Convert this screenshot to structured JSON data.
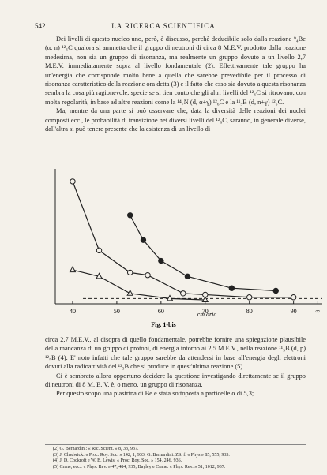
{
  "header": {
    "page_number": "542",
    "running_title": "LA RICERCA SCIENTIFICA"
  },
  "body_before": [
    "Dei livelli di questo nucleo uno, però, è discusso, perchè deducibile solo dalla reazione ⁹₄Be (α, n) ¹²₆C qualora si ammetta che il gruppo di neutroni di circa 8 M.E.V. prodotto dalla reazione medesima, non sia un gruppo di risonanza, ma realmente un gruppo dovuto a un livello 2,7 M.E.V. immediatamente sopra al livello fondamentale (2). Effettivamente tale gruppo ha un'energia che corrisponde molto bene a quella che sarebbe prevedibile per il processo di risonanza caratteristico della reazione ora detta (3) e il fatto che esso sia dovuto a questa risonanza sembra la cosa più ragionevole, specie se si tien conto che gli altri livelli del ¹²₆C si ritrovano, con molta regolarità, in base ad altre reazioni come la ¹⁴₇N (d, α+γ) ¹²₆C e la ¹¹₅B (d, n+γ) ¹²₆C.",
    "Ma, mentre da una parte si può osservare che, data la diversità delle reazioni dei nuclei composti ecc., le probabilità di transizione nei diversi livelli del ¹²₆C, saranno, in generale diverse, dall'altra si può tenere presente che la esistenza di un livello di"
  ],
  "figure": {
    "type": "scatter",
    "caption": "Fig. 1-bis",
    "xlabel": "cm aria",
    "xlim": [
      35,
      96.5
    ],
    "ylim": [
      0,
      100
    ],
    "xticks": [
      40,
      50,
      60,
      70,
      80,
      90,
      {
        "value": 95.5,
        "label": "∞"
      }
    ],
    "baseline": 4,
    "series": [
      {
        "marker": "open-circle",
        "x": [
          40,
          46,
          53,
          57,
          65,
          70,
          80,
          90
        ],
        "y": [
          94,
          41,
          24,
          22,
          8,
          7,
          5,
          5
        ]
      },
      {
        "marker": "filled-circle",
        "x": [
          53,
          56,
          60,
          66,
          76,
          86
        ],
        "y": [
          68,
          49,
          33,
          21,
          12,
          10
        ]
      },
      {
        "marker": "triangle",
        "x": [
          40,
          46,
          53,
          62,
          70
        ],
        "y": [
          26,
          21,
          8,
          4,
          3
        ]
      }
    ]
  },
  "body_after": [
    "circa 2,7 M.E.V., al disopra di quello fondamentale, potrebbe fornire una spiegazione plausibile della mancanza di un gruppo di protoni, di energia intorno ai 2,5 M.E.V., nella reazione ¹¹₅B (d, p) ¹²₅B (4). E' noto infatti che tale gruppo sarebbe da attendersi in base all'energia degli elettroni dovuti alla radioattività del ¹²₅B che si produce in quest'ultima reazione (5).",
    "Ci è sembrato allora opportuno decidere la questione investigando direttamente se il gruppo di neutroni di 8 M. E. V. è, o meno, un gruppo di risonanza.",
    "Per questo scopo una piastrina di Be è stata sottoposta a particelle α di 5,3;"
  ],
  "footnotes": [
    "(2) G. Bernardini: « Ric. Scient. » 8, 33, 937.",
    "(3) J. Chadwick: « Proc. Roy. Soc. » 142, 1, 933; G. Bernardini: ZS. f. « Phys » 85, 555, 933.",
    "(4) J. D. Cockroft e W. B. Lewis: « Proc. Roy. Soc. » 154, 246, 936.",
    "(5) Crane, ecc.: « Phys. Rev. » 47, 484, 935; Bayley e Crane: « Phys. Rev. » 51, 1012, 937."
  ]
}
